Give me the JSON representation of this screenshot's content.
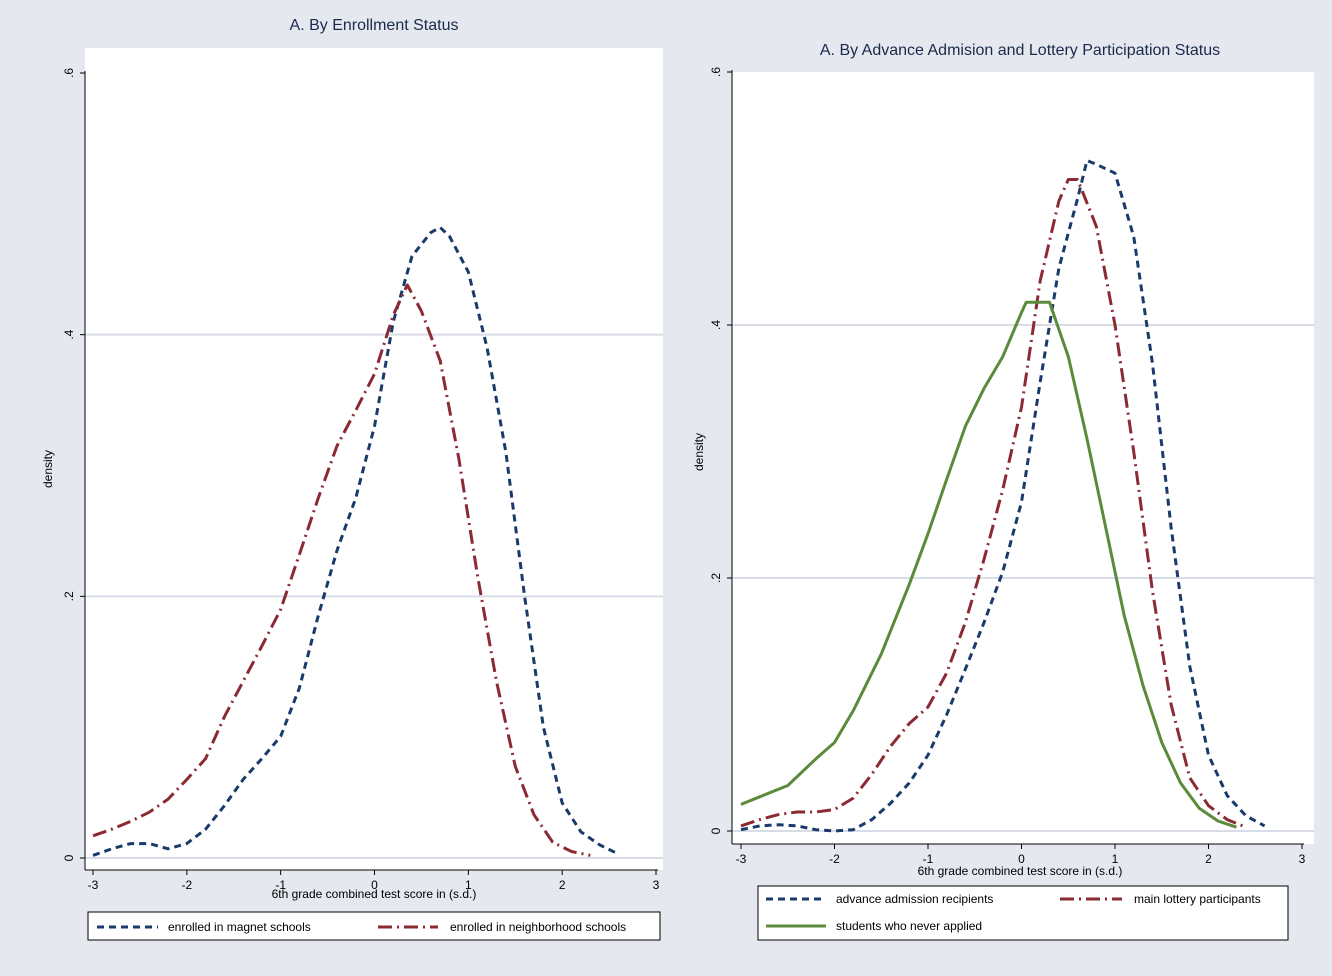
{
  "chart_data": [
    {
      "type": "line",
      "title": "A. By Enrollment Status",
      "xlabel": "6th grade combined test score in (s.d.)",
      "ylabel": "density",
      "xlim": [
        -3,
        3
      ],
      "ylim": [
        0,
        0.6
      ],
      "x_ticks": [
        "-3",
        "-2",
        "-1",
        "0",
        "1",
        "2",
        "3"
      ],
      "y_ticks": [
        "0",
        ".2",
        ".4",
        ".6"
      ],
      "grid": "horizontal",
      "legend_position": "bottom",
      "series": [
        {
          "name": "enrolled in magnet schools",
          "color": "#1a3a6b",
          "dash": "dashed",
          "points": [
            [
              -3.0,
              0.002
            ],
            [
              -2.8,
              0.007
            ],
            [
              -2.6,
              0.011
            ],
            [
              -2.4,
              0.011
            ],
            [
              -2.2,
              0.007
            ],
            [
              -2.0,
              0.011
            ],
            [
              -1.8,
              0.022
            ],
            [
              -1.6,
              0.04
            ],
            [
              -1.4,
              0.06
            ],
            [
              -1.2,
              0.076
            ],
            [
              -1.0,
              0.093
            ],
            [
              -0.8,
              0.13
            ],
            [
              -0.6,
              0.185
            ],
            [
              -0.4,
              0.235
            ],
            [
              -0.2,
              0.275
            ],
            [
              0.0,
              0.33
            ],
            [
              0.2,
              0.41
            ],
            [
              0.4,
              0.46
            ],
            [
              0.6,
              0.478
            ],
            [
              0.7,
              0.482
            ],
            [
              0.8,
              0.475
            ],
            [
              1.0,
              0.448
            ],
            [
              1.2,
              0.39
            ],
            [
              1.4,
              0.31
            ],
            [
              1.6,
              0.2
            ],
            [
              1.8,
              0.1
            ],
            [
              2.0,
              0.042
            ],
            [
              2.2,
              0.02
            ],
            [
              2.4,
              0.01
            ],
            [
              2.6,
              0.003
            ]
          ]
        },
        {
          "name": "enrolled in neighborhood schools",
          "color": "#8b2a32",
          "dash": "dashdot",
          "points": [
            [
              -3.0,
              0.017
            ],
            [
              -2.8,
              0.022
            ],
            [
              -2.6,
              0.028
            ],
            [
              -2.4,
              0.035
            ],
            [
              -2.2,
              0.045
            ],
            [
              -2.0,
              0.06
            ],
            [
              -1.8,
              0.076
            ],
            [
              -1.6,
              0.108
            ],
            [
              -1.4,
              0.135
            ],
            [
              -1.2,
              0.162
            ],
            [
              -1.0,
              0.19
            ],
            [
              -0.8,
              0.232
            ],
            [
              -0.6,
              0.275
            ],
            [
              -0.4,
              0.315
            ],
            [
              -0.2,
              0.342
            ],
            [
              0.0,
              0.37
            ],
            [
              0.2,
              0.415
            ],
            [
              0.35,
              0.438
            ],
            [
              0.5,
              0.418
            ],
            [
              0.7,
              0.38
            ],
            [
              0.9,
              0.305
            ],
            [
              1.1,
              0.215
            ],
            [
              1.3,
              0.135
            ],
            [
              1.5,
              0.07
            ],
            [
              1.7,
              0.033
            ],
            [
              1.9,
              0.012
            ],
            [
              2.1,
              0.005
            ],
            [
              2.3,
              0.002
            ]
          ]
        }
      ]
    },
    {
      "type": "line",
      "title": "A. By Advance Admision and Lottery Participation Status",
      "xlabel": "6th grade combined test score in (s.d.)",
      "ylabel": "density",
      "xlim": [
        -3,
        3
      ],
      "ylim": [
        0,
        0.6
      ],
      "x_ticks": [
        "-3",
        "-2",
        "-1",
        "0",
        "1",
        "2",
        "3"
      ],
      "y_ticks": [
        "0",
        ".2",
        ".4",
        ".6"
      ],
      "grid": "horizontal",
      "legend_position": "bottom",
      "series": [
        {
          "name": "advance admission recipients",
          "color": "#1a3a6b",
          "dash": "dashed",
          "points": [
            [
              -3.0,
              0.001
            ],
            [
              -2.8,
              0.004
            ],
            [
              -2.6,
              0.005
            ],
            [
              -2.4,
              0.004
            ],
            [
              -2.2,
              0.001
            ],
            [
              -2.0,
              0.0
            ],
            [
              -1.8,
              0.001
            ],
            [
              -1.6,
              0.009
            ],
            [
              -1.4,
              0.022
            ],
            [
              -1.2,
              0.038
            ],
            [
              -1.0,
              0.06
            ],
            [
              -0.8,
              0.092
            ],
            [
              -0.6,
              0.128
            ],
            [
              -0.4,
              0.165
            ],
            [
              -0.2,
              0.205
            ],
            [
              0.0,
              0.26
            ],
            [
              0.2,
              0.355
            ],
            [
              0.4,
              0.445
            ],
            [
              0.6,
              0.5
            ],
            [
              0.7,
              0.53
            ],
            [
              0.8,
              0.527
            ],
            [
              1.0,
              0.52
            ],
            [
              1.2,
              0.47
            ],
            [
              1.4,
              0.37
            ],
            [
              1.6,
              0.24
            ],
            [
              1.8,
              0.13
            ],
            [
              2.0,
              0.06
            ],
            [
              2.2,
              0.028
            ],
            [
              2.4,
              0.012
            ],
            [
              2.6,
              0.004
            ]
          ]
        },
        {
          "name": "main lottery participants",
          "color": "#8b2a32",
          "dash": "dashdot",
          "points": [
            [
              -3.0,
              0.004
            ],
            [
              -2.8,
              0.009
            ],
            [
              -2.6,
              0.013
            ],
            [
              -2.4,
              0.015
            ],
            [
              -2.2,
              0.015
            ],
            [
              -2.0,
              0.017
            ],
            [
              -1.8,
              0.026
            ],
            [
              -1.6,
              0.045
            ],
            [
              -1.4,
              0.067
            ],
            [
              -1.2,
              0.085
            ],
            [
              -1.0,
              0.098
            ],
            [
              -0.8,
              0.125
            ],
            [
              -0.6,
              0.165
            ],
            [
              -0.4,
              0.215
            ],
            [
              -0.2,
              0.27
            ],
            [
              0.0,
              0.335
            ],
            [
              0.2,
              0.435
            ],
            [
              0.4,
              0.498
            ],
            [
              0.5,
              0.515
            ],
            [
              0.6,
              0.515
            ],
            [
              0.8,
              0.478
            ],
            [
              1.0,
              0.4
            ],
            [
              1.2,
              0.3
            ],
            [
              1.4,
              0.19
            ],
            [
              1.6,
              0.1
            ],
            [
              1.8,
              0.042
            ],
            [
              2.0,
              0.02
            ],
            [
              2.2,
              0.009
            ],
            [
              2.4,
              0.003
            ]
          ]
        },
        {
          "name": "students who never applied",
          "color": "#5b8a3a",
          "dash": "solid",
          "points": [
            [
              -3.0,
              0.021
            ],
            [
              -2.8,
              0.027
            ],
            [
              -2.5,
              0.036
            ],
            [
              -2.2,
              0.057
            ],
            [
              -2.0,
              0.07
            ],
            [
              -1.8,
              0.095
            ],
            [
              -1.5,
              0.14
            ],
            [
              -1.2,
              0.195
            ],
            [
              -1.0,
              0.235
            ],
            [
              -0.8,
              0.278
            ],
            [
              -0.6,
              0.32
            ],
            [
              -0.4,
              0.35
            ],
            [
              -0.2,
              0.375
            ],
            [
              0.0,
              0.41
            ],
            [
              0.05,
              0.418
            ],
            [
              0.3,
              0.418
            ],
            [
              0.5,
              0.375
            ],
            [
              0.7,
              0.31
            ],
            [
              0.9,
              0.24
            ],
            [
              1.1,
              0.17
            ],
            [
              1.3,
              0.115
            ],
            [
              1.5,
              0.07
            ],
            [
              1.7,
              0.038
            ],
            [
              1.9,
              0.018
            ],
            [
              2.1,
              0.008
            ],
            [
              2.3,
              0.003
            ]
          ]
        }
      ]
    }
  ]
}
